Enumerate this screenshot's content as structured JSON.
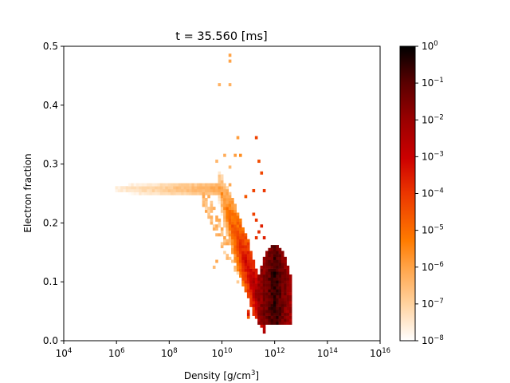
{
  "chart_data": {
    "type": "heatmap",
    "title": "t = 35.560 [ms]",
    "xlabel": "Density [g/cm",
    "xlabel_sup": "3",
    "xlabel_tail": "]",
    "ylabel": "Electron fraction",
    "x_scale": "log",
    "xlim": [
      10000,
      10000000000000000
    ],
    "ylim": [
      0.0,
      0.5
    ],
    "x_ticks": [
      {
        "value": 10000,
        "base": "10",
        "exp": "4"
      },
      {
        "value": 1000000,
        "base": "10",
        "exp": "6"
      },
      {
        "value": 100000000,
        "base": "10",
        "exp": "8"
      },
      {
        "value": 10000000000,
        "base": "10",
        "exp": "10"
      },
      {
        "value": 1000000000000,
        "base": "10",
        "exp": "12"
      },
      {
        "value": 100000000000000,
        "base": "10",
        "exp": "14"
      },
      {
        "value": 10000000000000000,
        "base": "10",
        "exp": "16"
      }
    ],
    "y_ticks": [
      "0.0",
      "0.1",
      "0.2",
      "0.3",
      "0.4",
      "0.5"
    ],
    "colorbar": {
      "scale": "log",
      "range": [
        1e-08,
        1
      ],
      "colormap": "gist_heat_r",
      "ticks": [
        {
          "value": 1,
          "base": "10",
          "exp": "0"
        },
        {
          "value": 0.1,
          "base": "10",
          "exp": "−1"
        },
        {
          "value": 0.01,
          "base": "10",
          "exp": "−2"
        },
        {
          "value": 0.001,
          "base": "10",
          "exp": "−3"
        },
        {
          "value": 0.0001,
          "base": "10",
          "exp": "−4"
        },
        {
          "value": 1e-05,
          "base": "10",
          "exp": "−5"
        },
        {
          "value": 1e-06,
          "base": "10",
          "exp": "−6"
        },
        {
          "value": 1e-07,
          "base": "10",
          "exp": "−7"
        },
        {
          "value": 1e-08,
          "base": "10",
          "exp": "−8"
        }
      ]
    },
    "grid": false,
    "structure": {
      "plateau": {
        "log_rho_range": [
          6.0,
          9.9
        ],
        "ye": 0.26,
        "ye_halfwidth": 0.008,
        "log_w": [
          -7.5,
          -6.0
        ]
      },
      "decline_band": {
        "log_rho_start": 9.9,
        "log_rho_end": 11.6,
        "ye_start": 0.26,
        "ye_end": 0.045,
        "log_w_start": -6.0,
        "log_w_end": -1.2
      },
      "clump": {
        "log_rho_range": [
          11.4,
          12.6
        ],
        "ye_range": [
          0.03,
          0.165
        ],
        "log_w_peak": -0.5
      },
      "bright_trough": {
        "log_rho_range": [
          11.0,
          12.1
        ],
        "ye_range": [
          0.04,
          0.09
        ],
        "log_w": -4.0
      },
      "isolated_cells": [
        {
          "log_rho": 10.35,
          "ye": 0.485,
          "log_w": -6.0
        },
        {
          "log_rho": 10.35,
          "ye": 0.475,
          "log_w": -6.0
        },
        {
          "log_rho": 9.95,
          "ye": 0.435,
          "log_w": -6.3
        },
        {
          "log_rho": 10.25,
          "ye": 0.435,
          "log_w": -6.3
        },
        {
          "log_rho": 10.55,
          "ye": 0.345,
          "log_w": -5.9
        },
        {
          "log_rho": 11.35,
          "ye": 0.345,
          "log_w": -4.2
        },
        {
          "log_rho": 9.85,
          "ye": 0.305,
          "log_w": -6.4
        },
        {
          "log_rho": 10.05,
          "ye": 0.315,
          "log_w": -6.2
        },
        {
          "log_rho": 10.5,
          "ye": 0.315,
          "log_w": -5.9
        },
        {
          "log_rho": 10.65,
          "ye": 0.315,
          "log_w": -5.6
        },
        {
          "log_rho": 11.45,
          "ye": 0.305,
          "log_w": -4.4
        },
        {
          "log_rho": 11.5,
          "ye": 0.285,
          "log_w": -4.3
        },
        {
          "log_rho": 10.25,
          "ye": 0.295,
          "log_w": -6.5
        },
        {
          "log_rho": 10.35,
          "ye": 0.265,
          "log_w": -6.1
        },
        {
          "log_rho": 11.15,
          "ye": 0.255,
          "log_w": -4.2
        },
        {
          "log_rho": 11.55,
          "ye": 0.255,
          "log_w": -4.0
        },
        {
          "log_rho": 10.9,
          "ye": 0.245,
          "log_w": -4.6
        },
        {
          "log_rho": 11.15,
          "ye": 0.215,
          "log_w": -4.2
        },
        {
          "log_rho": 11.35,
          "ye": 0.205,
          "log_w": -4.0
        },
        {
          "log_rho": 11.5,
          "ye": 0.195,
          "log_w": -3.6
        },
        {
          "log_rho": 11.45,
          "ye": 0.185,
          "log_w": -3.8
        },
        {
          "log_rho": 11.35,
          "ye": 0.175,
          "log_w": -3.9
        },
        {
          "log_rho": 11.6,
          "ye": 0.175,
          "log_w": -3.6
        },
        {
          "log_rho": 9.85,
          "ye": 0.135,
          "log_w": -6.1
        },
        {
          "log_rho": 9.7,
          "ye": 0.125,
          "log_w": -6.5
        }
      ]
    }
  }
}
